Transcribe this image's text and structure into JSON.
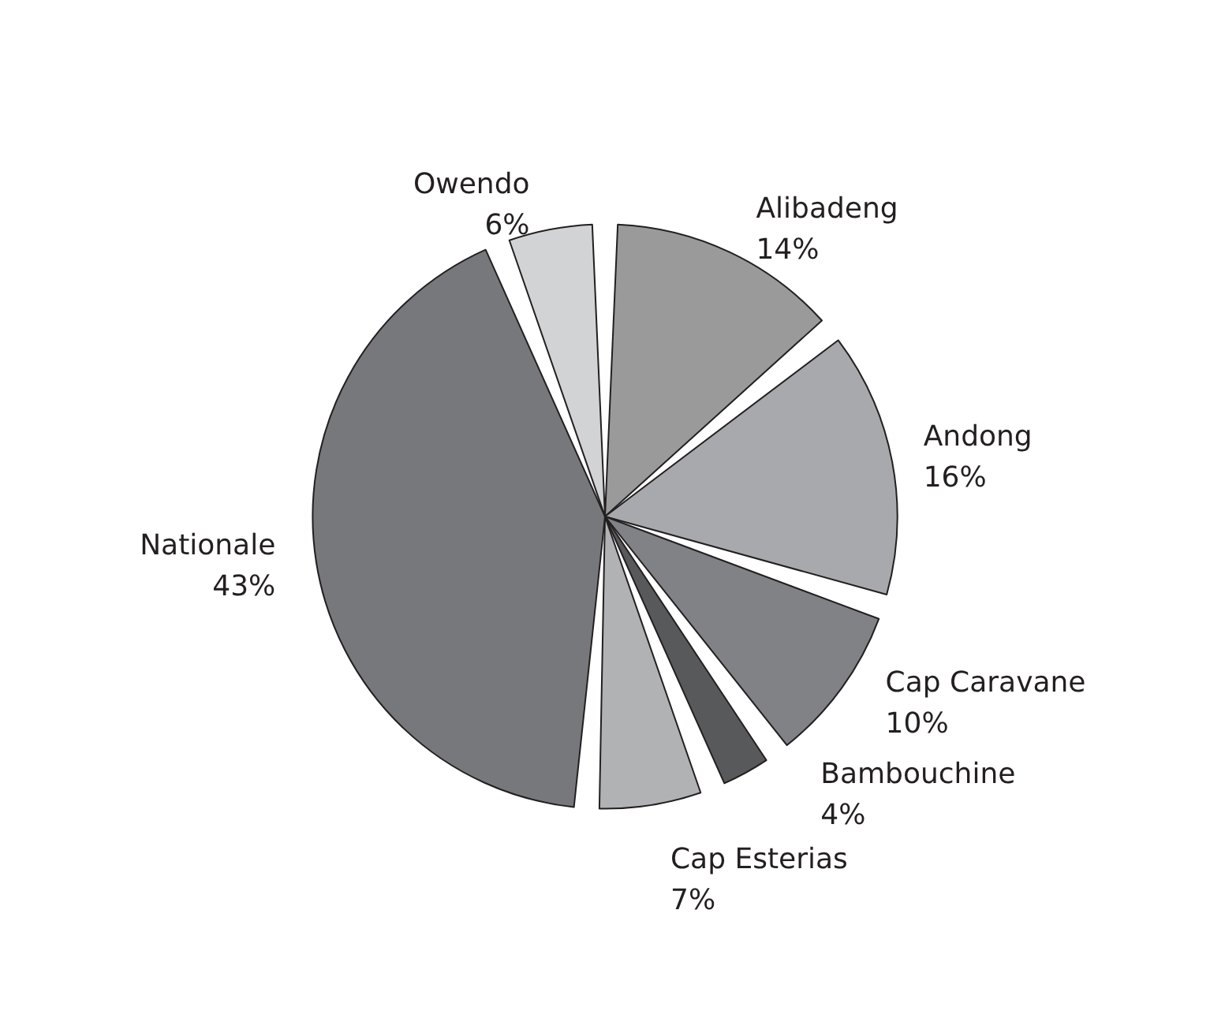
{
  "chart_data": {
    "type": "pie",
    "categories": [
      "Alibadeng",
      "Andong",
      "Cap Caravane",
      "Bambouchine",
      "Cap Esterias",
      "Nationale",
      "Owendo"
    ],
    "values": [
      14,
      16,
      10,
      4,
      7,
      43,
      6
    ],
    "colors": [
      "#9a9a9a",
      "#a7a9ac",
      "#808285",
      "#58595b",
      "#b0b2b4",
      "#77787b",
      "#d1d3d4"
    ],
    "value_labels": [
      "14%",
      "16%",
      "10%",
      "4%",
      "7%",
      "43%",
      "6%"
    ],
    "legend": false
  }
}
